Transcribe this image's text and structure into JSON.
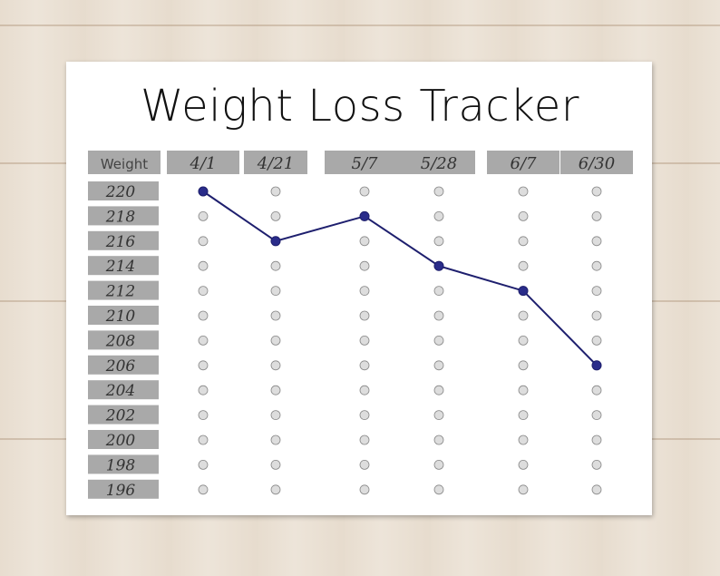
{
  "chart_data": {
    "type": "line",
    "title": "Weight Loss Tracker",
    "row_header": "Weight",
    "categories": [
      "4/1",
      "4/21",
      "5/7",
      "5/28",
      "6/7",
      "6/30"
    ],
    "y_levels": [
      220,
      218,
      216,
      214,
      212,
      210,
      208,
      206,
      204,
      202,
      200,
      198,
      196
    ],
    "series": [
      {
        "values": [
          220,
          216,
          218,
          214,
          212,
          206
        ]
      }
    ],
    "colors": {
      "line": "#1e1f6e",
      "marker": "#2a2c8a",
      "empty_marker": "#dddddd",
      "label_bg": "#a9a9a9"
    }
  }
}
